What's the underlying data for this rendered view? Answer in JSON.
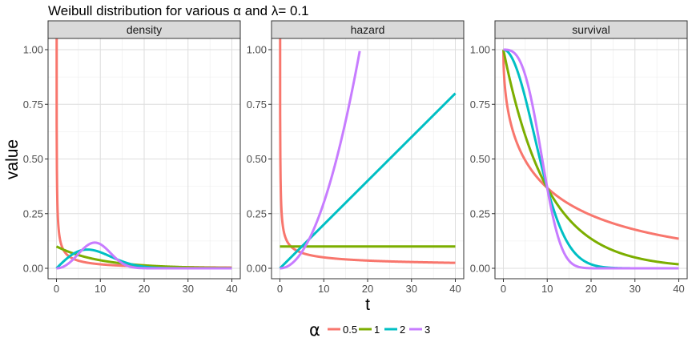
{
  "chart_data": {
    "type": "line",
    "title": "Weibull distribution for various α and λ= 0.1",
    "xlabel": "t",
    "ylabel": "value",
    "xlim": [
      0,
      40
    ],
    "ylim": [
      0,
      1.05
    ],
    "x_ticks": [
      0,
      10,
      20,
      30,
      40
    ],
    "y_ticks": [
      0,
      0.25,
      0.5,
      0.75,
      1
    ],
    "y_tick_labels": [
      "0.00",
      "0.25",
      "0.50",
      "0.75",
      "1.00"
    ],
    "x_tick_labels": [
      "0",
      "10",
      "20",
      "30",
      "40"
    ],
    "grid": true,
    "legend": {
      "title": "α",
      "position": "bottom"
    },
    "lambda": 0.1,
    "panels": [
      {
        "name": "density",
        "label": "density"
      },
      {
        "name": "hazard",
        "label": "hazard"
      },
      {
        "name": "survival",
        "label": "survival"
      }
    ],
    "series": [
      {
        "name": "0.5",
        "alpha": 0.5,
        "color": "#F8766D"
      },
      {
        "name": "1",
        "alpha": 1,
        "color": "#7CAE00"
      },
      {
        "name": "2",
        "alpha": 2,
        "color": "#00BFC4"
      },
      {
        "name": "3",
        "alpha": 3,
        "color": "#C77CFF"
      }
    ]
  }
}
